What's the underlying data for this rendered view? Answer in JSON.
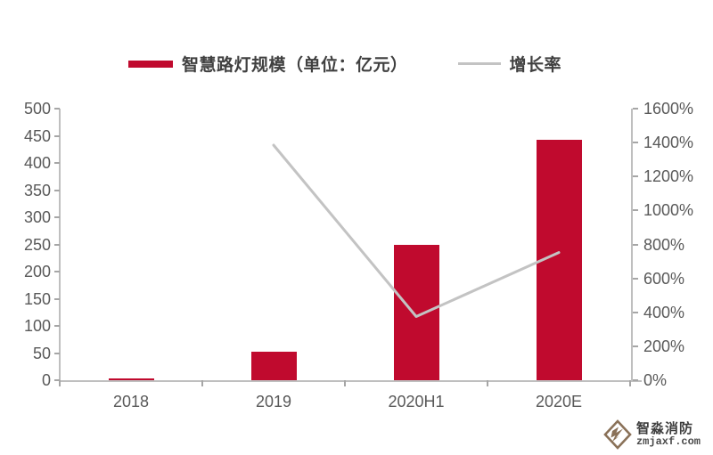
{
  "legend": {
    "items": [
      {
        "label": "智慧路灯规模（单位：亿元）",
        "swatch": "bar"
      },
      {
        "label": "增长率",
        "swatch": "line"
      }
    ]
  },
  "chart_data": {
    "type": "combo",
    "categories": [
      "2018",
      "2019",
      "2020H1",
      "2020E"
    ],
    "series": [
      {
        "name": "智慧路灯规模（单位：亿元）",
        "type": "bar",
        "axis": "left",
        "color": "#c00a2e",
        "values": [
          4,
          52,
          250,
          443
        ]
      },
      {
        "name": "增长率",
        "type": "line",
        "axis": "right",
        "color": "#c3c3c3",
        "values": [
          null,
          1385,
          375,
          752
        ]
      }
    ],
    "left_axis": {
      "min": 0,
      "max": 500,
      "step": 50,
      "tick_labels": [
        "500",
        "450",
        "400",
        "350",
        "300",
        "250",
        "200",
        "150",
        "100",
        "50",
        "0"
      ]
    },
    "right_axis": {
      "min": 0,
      "max": 1600,
      "step": 200,
      "tick_labels": [
        "1600%",
        "1400%",
        "1200%",
        "1000%",
        "800%",
        "600%",
        "400%",
        "200%",
        "0%"
      ]
    },
    "title": "",
    "grid": false,
    "legend_position": "top"
  },
  "colors": {
    "bar": "#c00a2e",
    "line": "#c3c3c3",
    "axis": "#bfbfbf",
    "tick_text": "#595959",
    "legend_text": "#404040",
    "watermark": "#8a7158"
  },
  "watermark": {
    "brand": "智淼消防",
    "domain": "zmjaxf.com"
  }
}
